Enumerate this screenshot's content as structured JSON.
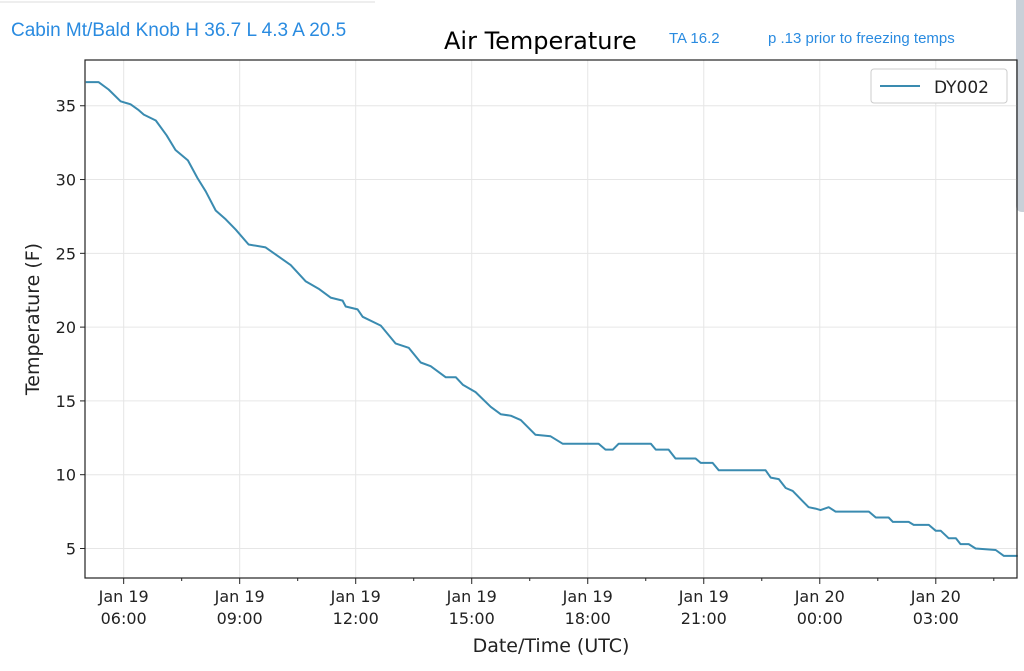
{
  "header": {
    "station_summary": "Cabin Mt/Bald Knob H 36.7 L 4.3 A 20.5",
    "ta": "TA 16.2",
    "note": "p .13 prior to freezing temps"
  },
  "colors": {
    "line": "#3a8bb0",
    "header_text": "#2a8be0",
    "grid": "#e6e6e6"
  },
  "chart_data": {
    "type": "line",
    "title": "Air Temperature",
    "xlabel": "Date/Time (UTC)",
    "ylabel": "Temperature (F)",
    "x_units": "hours since Jan 19 00:00 UTC",
    "xlim": [
      5.0,
      29.1
    ],
    "ylim": [
      3.0,
      38.1
    ],
    "grid": true,
    "legend_position": "top-right",
    "x_ticks": [
      {
        "value": 6,
        "line1": "Jan 19",
        "line2": "06:00"
      },
      {
        "value": 9,
        "line1": "Jan 19",
        "line2": "09:00"
      },
      {
        "value": 12,
        "line1": "Jan 19",
        "line2": "12:00"
      },
      {
        "value": 15,
        "line1": "Jan 19",
        "line2": "15:00"
      },
      {
        "value": 18,
        "line1": "Jan 19",
        "line2": "18:00"
      },
      {
        "value": 21,
        "line1": "Jan 19",
        "line2": "21:00"
      },
      {
        "value": 24,
        "line1": "Jan 20",
        "line2": "00:00"
      },
      {
        "value": 27,
        "line1": "Jan 20",
        "line2": "03:00"
      }
    ],
    "y_ticks": [
      5,
      10,
      15,
      20,
      25,
      30,
      35
    ],
    "series": [
      {
        "name": "DY002",
        "x": [
          5.02,
          5.35,
          5.61,
          5.92,
          6.18,
          6.39,
          6.52,
          6.83,
          7.11,
          7.34,
          7.66,
          7.91,
          8.12,
          8.38,
          8.64,
          8.9,
          9.23,
          9.67,
          10.32,
          10.71,
          11.04,
          11.35,
          11.66,
          11.74,
          12.05,
          12.18,
          12.65,
          13.03,
          13.37,
          13.68,
          13.94,
          14.07,
          14.33,
          14.59,
          14.77,
          15.1,
          15.49,
          15.75,
          16.01,
          16.27,
          16.65,
          17.04,
          17.35,
          18.28,
          18.46,
          18.65,
          18.8,
          19.63,
          19.76,
          20.09,
          20.27,
          20.79,
          20.92,
          21.23,
          21.39,
          22.6,
          22.73,
          22.94,
          23.12,
          23.3,
          23.56,
          23.71,
          23.89,
          24.02,
          24.23,
          24.41,
          25.27,
          25.45,
          25.78,
          25.89,
          26.3,
          26.43,
          26.82,
          27.0,
          27.13,
          27.33,
          27.52,
          27.64,
          27.85,
          28.03,
          28.55,
          28.76,
          29.12
        ],
        "y": [
          36.6,
          36.6,
          36.1,
          35.3,
          35.1,
          34.7,
          34.4,
          34.0,
          33.0,
          32.0,
          31.3,
          30.1,
          29.2,
          27.9,
          27.3,
          26.6,
          25.6,
          25.4,
          24.2,
          23.1,
          22.6,
          22.0,
          21.8,
          21.4,
          21.2,
          20.7,
          20.1,
          18.9,
          18.6,
          17.6,
          17.35,
          17.1,
          16.6,
          16.6,
          16.1,
          15.6,
          14.6,
          14.1,
          14.0,
          13.7,
          12.7,
          12.6,
          12.1,
          12.1,
          11.7,
          11.7,
          12.1,
          12.1,
          11.7,
          11.7,
          11.1,
          11.1,
          10.8,
          10.8,
          10.3,
          10.3,
          9.8,
          9.7,
          9.1,
          8.9,
          8.2,
          7.8,
          7.7,
          7.6,
          7.8,
          7.5,
          7.5,
          7.1,
          7.1,
          6.8,
          6.8,
          6.6,
          6.6,
          6.2,
          6.2,
          5.7,
          5.7,
          5.3,
          5.3,
          5.0,
          4.9,
          4.5,
          4.5
        ]
      }
    ]
  }
}
